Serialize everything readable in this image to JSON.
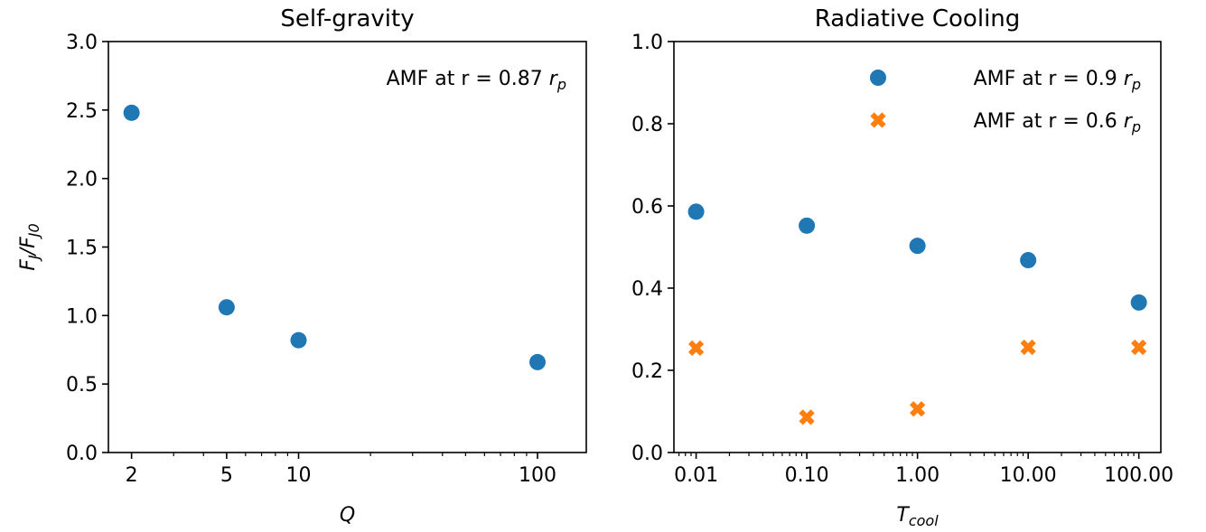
{
  "chart_data": [
    {
      "type": "scatter",
      "title": "Self-gravity",
      "xlabel": {
        "base": "Q",
        "sub": ""
      },
      "ylabel": {
        "parts": [
          {
            "t": "F",
            "sub": "J"
          },
          {
            "t": "/F",
            "sub": "J0"
          }
        ]
      },
      "xscale": "log",
      "xlim": [
        1.6,
        160
      ],
      "ylim": [
        0,
        3.0
      ],
      "xticks": [
        {
          "value": 2,
          "label": "2"
        },
        {
          "value": 5,
          "label": "5"
        },
        {
          "value": 10,
          "label": "10"
        },
        {
          "value": 100,
          "label": "100"
        }
      ],
      "yticks": [
        {
          "value": 0.0,
          "label": "0.0"
        },
        {
          "value": 0.5,
          "label": "0.5"
        },
        {
          "value": 1.0,
          "label": "1.0"
        },
        {
          "value": 1.5,
          "label": "1.5"
        },
        {
          "value": 2.0,
          "label": "2.0"
        },
        {
          "value": 2.5,
          "label": "2.5"
        },
        {
          "value": 3.0,
          "label": "3.0"
        }
      ],
      "grid": false,
      "legend_position": "top-right",
      "series": [
        {
          "name": "AMF at r = 0.87 r_p",
          "label_main": "AMF at r = 0.87 ",
          "label_var": "r",
          "label_sub": "p",
          "marker": "circle",
          "color": "#1f77b4",
          "x": [
            2,
            5,
            10,
            100
          ],
          "y": [
            2.48,
            1.06,
            0.82,
            0.66
          ]
        }
      ]
    },
    {
      "type": "scatter",
      "title": "Radiative Cooling",
      "xlabel": {
        "base": "T",
        "sub": "cool"
      },
      "ylabel": null,
      "xscale": "log",
      "xlim": [
        0.0063,
        158
      ],
      "ylim": [
        0,
        1.0
      ],
      "xticks": [
        {
          "value": 0.01,
          "label": "0.01"
        },
        {
          "value": 0.1,
          "label": "0.10"
        },
        {
          "value": 1,
          "label": "1.00"
        },
        {
          "value": 10,
          "label": "10.00"
        },
        {
          "value": 100,
          "label": "100.00"
        }
      ],
      "yticks": [
        {
          "value": 0.0,
          "label": "0.0"
        },
        {
          "value": 0.2,
          "label": "0.2"
        },
        {
          "value": 0.4,
          "label": "0.4"
        },
        {
          "value": 0.6,
          "label": "0.6"
        },
        {
          "value": 0.8,
          "label": "0.8"
        },
        {
          "value": 1.0,
          "label": "1.0"
        }
      ],
      "grid": false,
      "legend_position": "top-right",
      "series": [
        {
          "name": "AMF at r = 0.9 r_p",
          "label_main": "AMF at r = 0.9 ",
          "label_var": "r",
          "label_sub": "p",
          "marker": "circle",
          "color": "#1f77b4",
          "x": [
            0.01,
            0.1,
            1,
            10,
            100
          ],
          "y": [
            0.586,
            0.552,
            0.503,
            0.468,
            0.365
          ]
        },
        {
          "name": "AMF at r = 0.6 r_p",
          "label_main": "AMF at r = 0.6 ",
          "label_var": "r",
          "label_sub": "p",
          "marker": "x",
          "color": "#ff7f0e",
          "x": [
            0.01,
            0.1,
            1,
            10,
            100
          ],
          "y": [
            0.254,
            0.086,
            0.106,
            0.256,
            0.256
          ]
        }
      ]
    }
  ]
}
